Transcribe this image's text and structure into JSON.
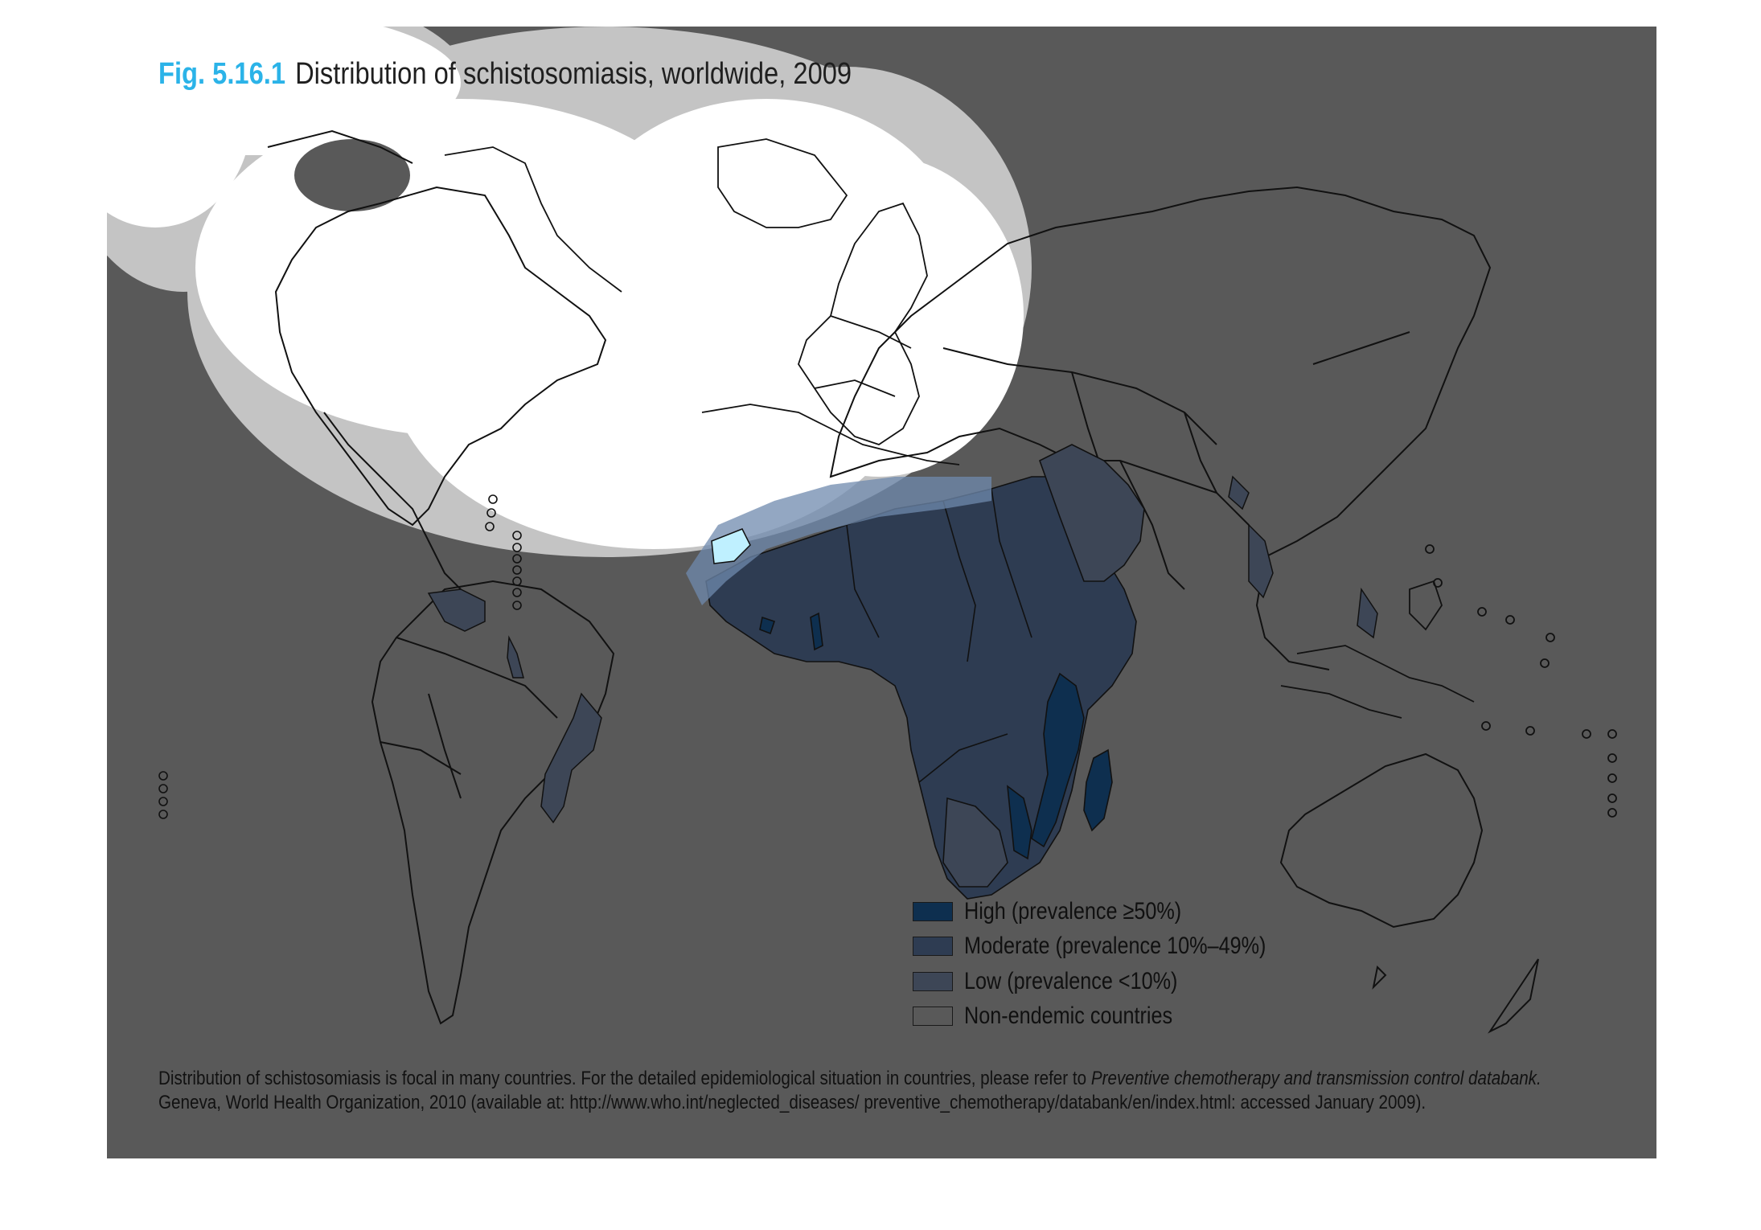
{
  "figure": {
    "number": "Fig. 5.16.1",
    "title": "Distribution of schistosomiasis, worldwide, 2009"
  },
  "legend": [
    {
      "key": "high",
      "label": "High (prevalence ≥50%)",
      "color": "#0e2f4f"
    },
    {
      "key": "moderate",
      "label": "Moderate (prevalence 10%–49%)",
      "color": "#2e3c52"
    },
    {
      "key": "low",
      "label": "Low (prevalence <10%)",
      "color": "#3d4656"
    },
    {
      "key": "none",
      "label": "Non-endemic countries",
      "color": "#595959"
    }
  ],
  "footnote": {
    "text1": "Distribution of schistosomiasis is focal in many countries. For the detailed epidemiological situation in countries, please refer to ",
    "link_title": "Preventive chemotherapy and transmission control databank.",
    "text2": "Geneva, World Health Organization, 2010 (available at: http://www.who.int/neglected_diseases/ preventive_chemotherapy/databank/en/index.html: accessed January 2009)."
  },
  "colors": {
    "background": "#595959",
    "accent": "#2bb3e8",
    "outline": "#111111"
  }
}
